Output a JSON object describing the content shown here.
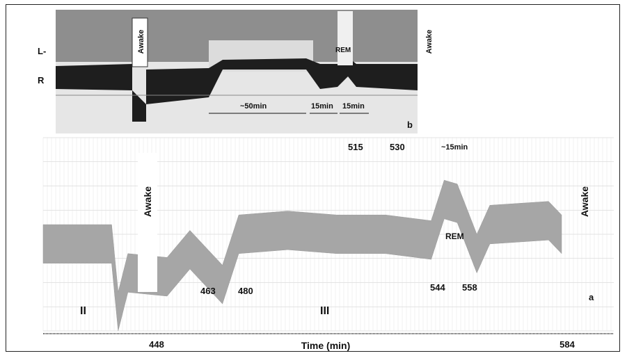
{
  "chart_data": [
    {
      "panel": "b",
      "type": "line",
      "channels": [
        {
          "name": "L-"
        },
        {
          "name": "R"
        }
      ],
      "annotations": {
        "awake_left": "Awake",
        "awake_right": "Awake",
        "rem": "REM",
        "durations": [
          "~50min",
          "15min",
          "15min"
        ],
        "panel_label": "b"
      }
    },
    {
      "panel": "a",
      "type": "line",
      "xlabel": "Time (min)",
      "x_ticks": [
        "448",
        "584"
      ],
      "xlim": [
        425,
        600
      ],
      "series": [
        {
          "values": [
            [
              425,
              0.45
            ],
            [
              446,
              0.45
            ],
            [
              448,
              0.1
            ],
            [
              451,
              0.3
            ],
            [
              463,
              0.28
            ],
            [
              470,
              0.42
            ],
            [
              480,
              0.24
            ],
            [
              485,
              0.5
            ],
            [
              500,
              0.52
            ],
            [
              515,
              0.5
            ],
            [
              530,
              0.5
            ],
            [
              544,
              0.47
            ],
            [
              548,
              0.68
            ],
            [
              552,
              0.66
            ],
            [
              558,
              0.4
            ],
            [
              562,
              0.55
            ],
            [
              580,
              0.57
            ],
            [
              584,
              0.5
            ]
          ]
        }
      ],
      "annotations": {
        "stages": [
          "II",
          "III"
        ],
        "awake_left": "Awake",
        "awake_right": "Awake",
        "rem": "REM",
        "rem_duration": "~15min",
        "time_marks": [
          "463",
          "480",
          "515",
          "530",
          "544",
          "558"
        ],
        "panel_label": "a"
      }
    }
  ],
  "colors": {
    "panel_b_trace_L": "#8e8e8e",
    "panel_b_trace_R": "#1e1e1e",
    "panel_a_trace": "#a6a6a6",
    "grid": "#c8c8c8"
  }
}
